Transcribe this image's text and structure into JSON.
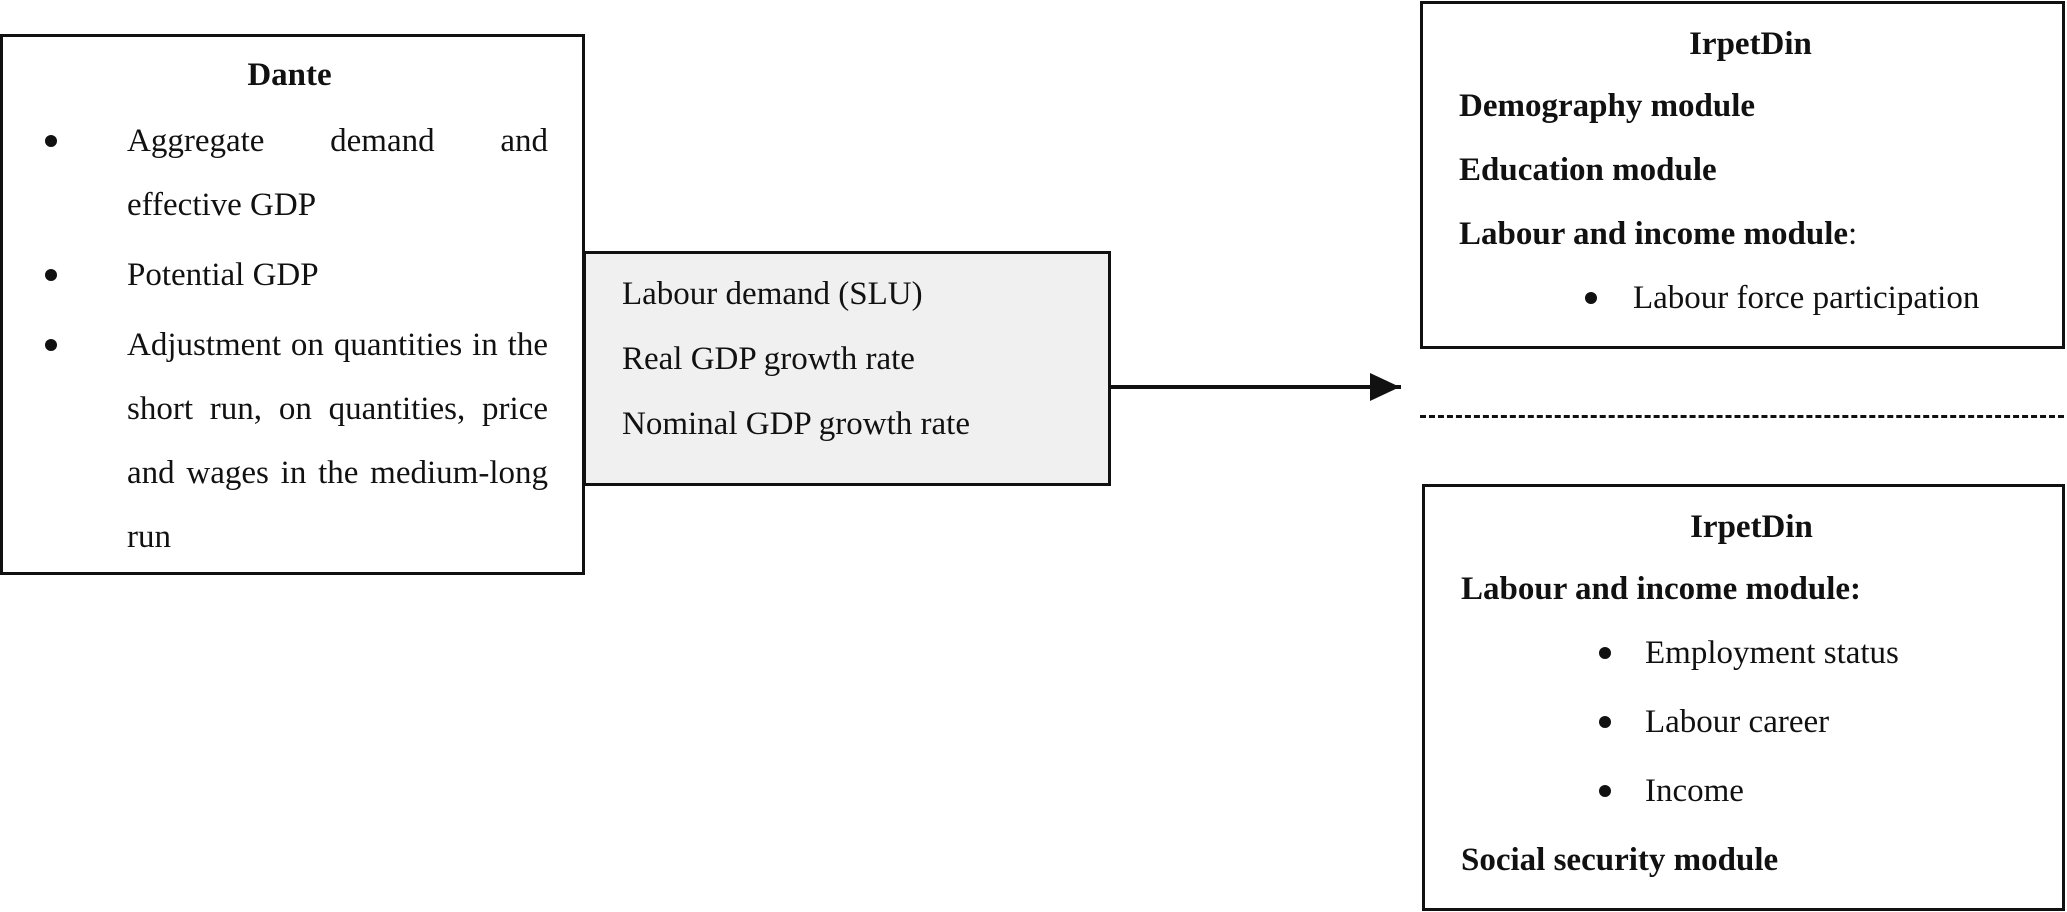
{
  "dante": {
    "title": "Dante",
    "items": [
      "Aggregate demand and effective GDP",
      "Potential GDP",
      "Adjustment on quantities in the short run, on quantities, price and wages in the medium-long run"
    ]
  },
  "middle": {
    "lines": [
      "Labour demand (SLU)",
      "Real GDP growth rate",
      "Nominal GDP growth rate"
    ]
  },
  "irpet_top": {
    "title": "IrpetDin",
    "modules": [
      "Demography module",
      "Education module"
    ],
    "labour_module": "Labour and income module",
    "labour_module_colon": ":",
    "items": [
      "Labour force participation"
    ]
  },
  "irpet_bottom": {
    "title": "IrpetDin",
    "labour_module": "Labour and income module:",
    "items": [
      "Employment status",
      "Labour career",
      "Income"
    ],
    "social_module": "Social security module"
  }
}
